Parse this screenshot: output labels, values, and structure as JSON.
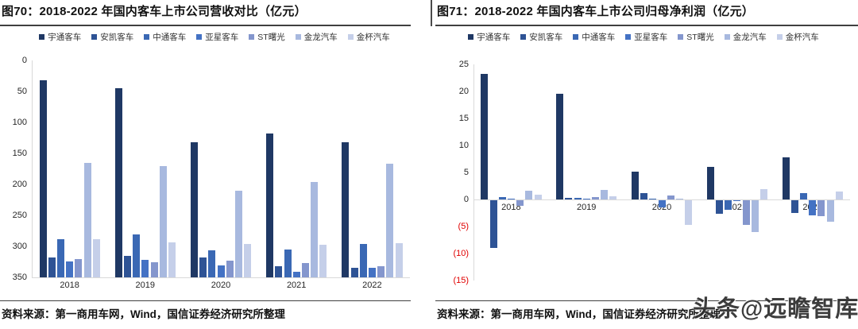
{
  "page": {
    "watermark": "头条@远瞻智库",
    "source_note": "资料来源：第一商用车网，Wind，国信证券经济研究所整理"
  },
  "colors": {
    "axis_line": "#d9d9d9",
    "tick_text": "#262626",
    "negative_tick_red": "#e00000",
    "rule_dark": "#3f3f3f"
  },
  "panels": [
    {
      "title": "图70：2018-2022 年国内客车上市公司营收对比（亿元）",
      "source": "资料来源：第一商用车网，Wind，国信证券经济研究所整理"
    },
    {
      "title": "图71：2018-2022 年国内客车上市公司归母净利润（亿元）",
      "source": "资料来源：第一商用车网，Wind，国信证券经济研究所整理"
    }
  ],
  "chart_data": [
    {
      "type": "bar",
      "title": "图70：2018-2022 年国内客车上市公司营收对比（亿元）",
      "categories": [
        "2018",
        "2019",
        "2020",
        "2021",
        "2022"
      ],
      "series": [
        {
          "name": "宇通客车",
          "color": "#1F3864",
          "values": [
            318,
            305,
            218,
            232,
            218
          ]
        },
        {
          "name": "安凯客车",
          "color": "#2E5395",
          "values": [
            32,
            34,
            32,
            18,
            15
          ]
        },
        {
          "name": "中通客车",
          "color": "#3A68B4",
          "values": [
            61,
            69,
            44,
            45,
            54
          ]
        },
        {
          "name": "亚星客车",
          "color": "#4472C4",
          "values": [
            26,
            28,
            19,
            9,
            15
          ]
        },
        {
          "name": "ST曙光",
          "color": "#8496CD",
          "values": [
            29,
            25,
            27,
            23,
            18
          ]
        },
        {
          "name": "金龙汽车",
          "color": "#A8B9DF",
          "values": [
            184,
            180,
            140,
            154,
            183
          ]
        },
        {
          "name": "金杯汽车",
          "color": "#C5CFE9",
          "values": [
            62,
            56,
            54,
            52,
            55
          ]
        }
      ],
      "xlabel": "",
      "ylabel": "",
      "ylim": [
        0,
        350
      ],
      "ytick_step": 50,
      "yticks_display": [
        "0",
        "50",
        "100",
        "150",
        "200",
        "250",
        "300",
        "350"
      ],
      "grid": false,
      "legend_position": "top"
    },
    {
      "type": "bar",
      "title": "图71：2018-2022 年国内客车上市公司归母净利润（亿元）",
      "categories": [
        "2018",
        "2019",
        "2020",
        "2021",
        "2022"
      ],
      "series": [
        {
          "name": "宇通客车",
          "color": "#1F3864",
          "values": [
            23.2,
            19.5,
            5.2,
            6.1,
            7.8
          ]
        },
        {
          "name": "安凯客车",
          "color": "#2E5395",
          "values": [
            -8.8,
            0.3,
            1.2,
            -2.5,
            -2.3
          ]
        },
        {
          "name": "中通客车",
          "color": "#3A68B4",
          "values": [
            0.4,
            0.3,
            0.2,
            -1.8,
            1.2
          ]
        },
        {
          "name": "亚星客车",
          "color": "#4472C4",
          "values": [
            0.1,
            0.1,
            -1.3,
            -0.1,
            -2.8
          ]
        },
        {
          "name": "ST曙光",
          "color": "#8496CD",
          "values": [
            -1.1,
            0.5,
            0.7,
            -4.6,
            -3.0
          ]
        },
        {
          "name": "金龙汽车",
          "color": "#A8B9DF",
          "values": [
            1.6,
            1.8,
            0.2,
            -5.9,
            -4.0
          ]
        },
        {
          "name": "金杯汽车",
          "color": "#C5CFE9",
          "values": [
            0.9,
            0.6,
            -4.6,
            1.9,
            1.5
          ]
        }
      ],
      "xlabel": "",
      "ylabel": "",
      "ylim": [
        -15,
        25
      ],
      "ytick_step": 5,
      "yticks_display": [
        "25",
        "20",
        "15",
        "10",
        "5",
        "0",
        "(5)",
        "(10)",
        "(15)"
      ],
      "negative_tick_format": "parentheses-red",
      "grid": false,
      "legend_position": "top"
    }
  ]
}
